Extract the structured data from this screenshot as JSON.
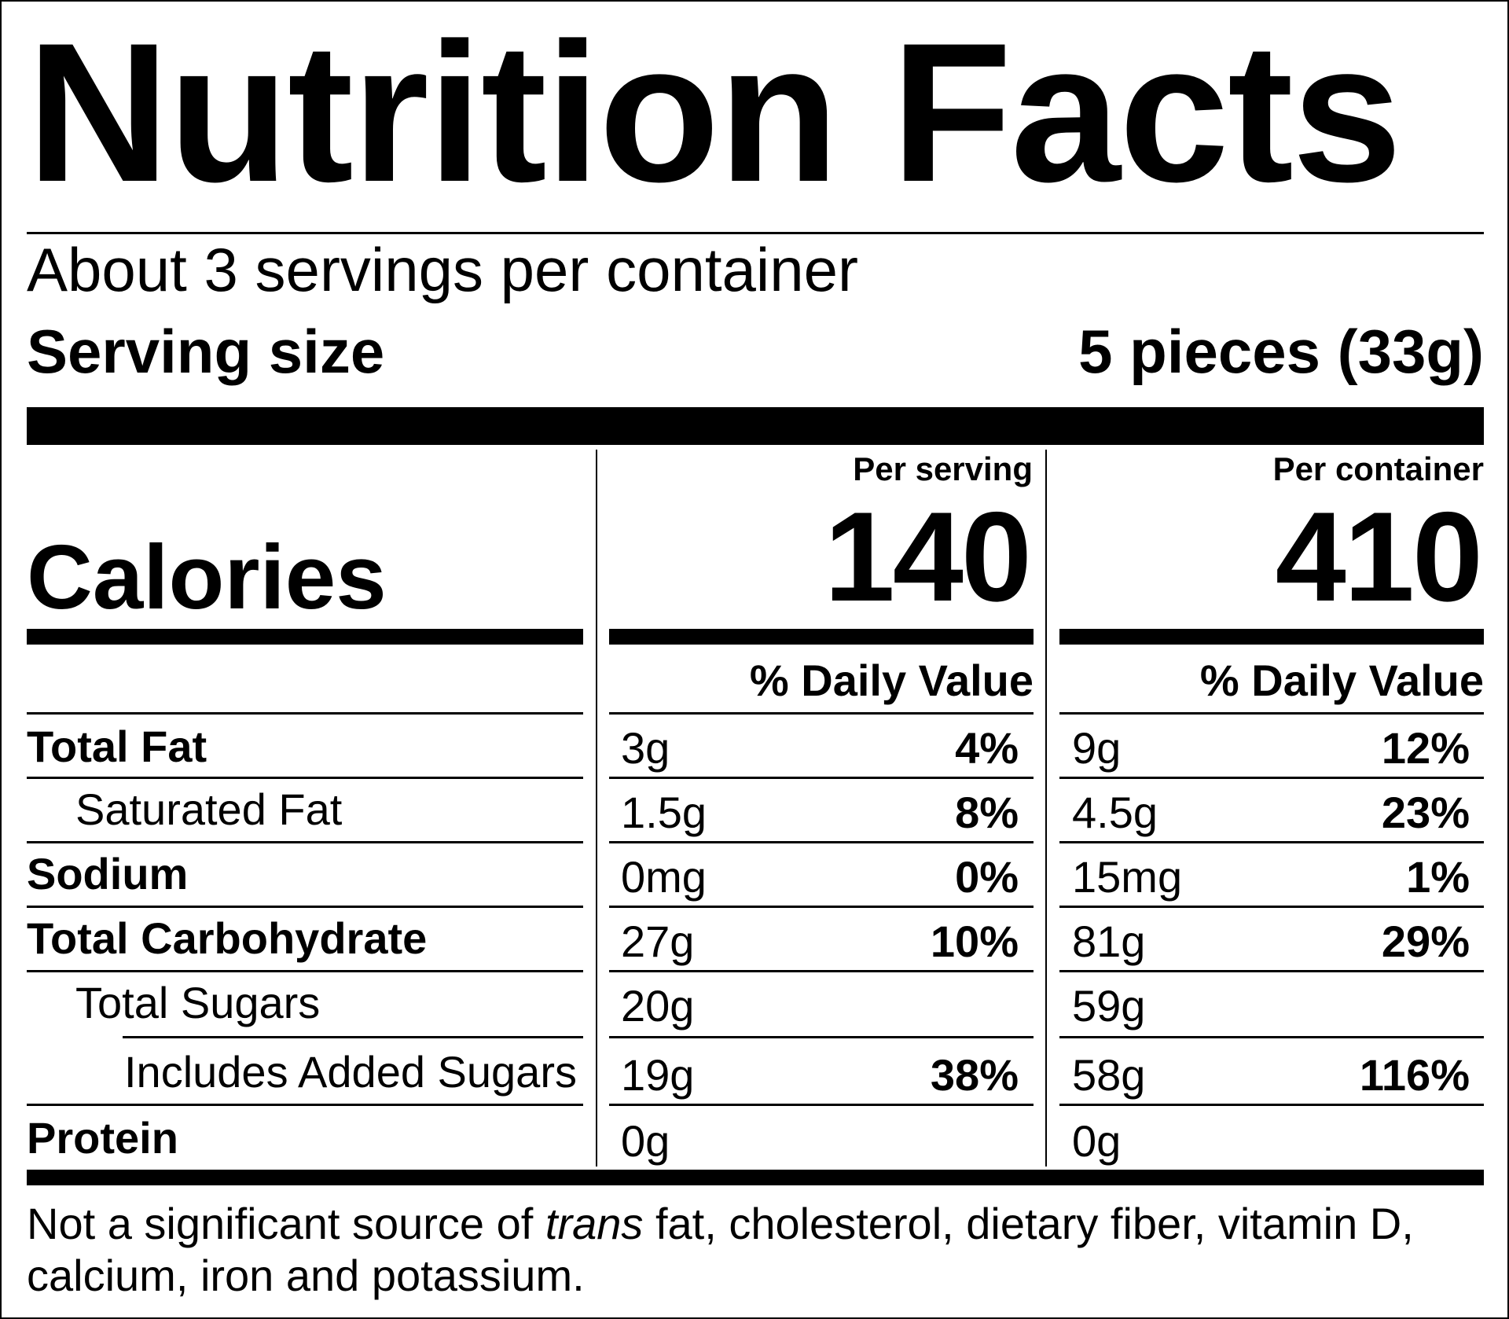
{
  "label": {
    "title": "Nutrition Facts",
    "servings_per_container": "About 3 servings per container",
    "serving_size_label": "Serving size",
    "serving_size_value": "5 pieces (33g)",
    "per_serving_header": "Per serving",
    "per_container_header": "Per container",
    "calories_label": "Calories",
    "calories_per_serving": "140",
    "calories_per_container": "410",
    "dv_header_serving": "% Daily Value",
    "dv_header_container": "% Daily Value",
    "nutrients": [
      {
        "name": "Total Fat",
        "serving_amount": "3g",
        "serving_dv": "4%",
        "container_amount": "9g",
        "container_dv": "12%"
      },
      {
        "name": "Saturated Fat",
        "serving_amount": "1.5g",
        "serving_dv": "8%",
        "container_amount": "4.5g",
        "container_dv": "23%"
      },
      {
        "name": "Sodium",
        "serving_amount": "0mg",
        "serving_dv": "0%",
        "container_amount": "15mg",
        "container_dv": "1%"
      },
      {
        "name": "Total Carbohydrate",
        "serving_amount": "27g",
        "serving_dv": "10%",
        "container_amount": "81g",
        "container_dv": "29%"
      },
      {
        "name": "Total Sugars",
        "serving_amount": "20g",
        "serving_dv": "",
        "container_amount": "59g",
        "container_dv": ""
      },
      {
        "name": "Includes Added Sugars",
        "serving_amount": "19g",
        "serving_dv": "38%",
        "container_amount": "58g",
        "container_dv": "116%"
      },
      {
        "name": "Protein",
        "serving_amount": "0g",
        "serving_dv": "",
        "container_amount": "0g",
        "container_dv": ""
      }
    ],
    "footnote_pre": "Not a significant source of ",
    "footnote_italic": "trans",
    "footnote_post": " fat, cholesterol, dietary fiber, vitamin D, calcium, iron and potassium."
  }
}
